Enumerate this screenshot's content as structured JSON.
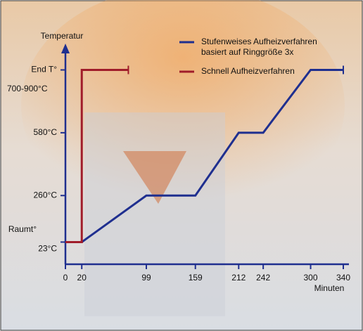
{
  "chart_data": {
    "type": "line",
    "y_label": "Temperatur",
    "x_label": "Minuten",
    "annotations": [
      "700-900°C",
      "Raumt°"
    ],
    "xlim": [
      0,
      340
    ],
    "xticks": [
      0,
      20,
      99,
      159,
      212,
      242,
      300,
      340
    ],
    "ylim": [
      -90,
      1020
    ],
    "yticks": [
      {
        "value": 23,
        "label": "23°C"
      },
      {
        "value": 260,
        "label": "260°C"
      },
      {
        "value": 580,
        "label": "580°C"
      },
      {
        "value": 900,
        "label": "End T°"
      }
    ],
    "legend": "top-right",
    "series": [
      {
        "name": "Stufenweises Aufheizverfahren basiert auf Ringgröße 3x",
        "color": "#1f2f8f",
        "x": [
          0,
          20,
          99,
          159,
          212,
          242,
          300,
          340
        ],
        "values": [
          23,
          23,
          260,
          260,
          580,
          580,
          900,
          900
        ]
      },
      {
        "name": "Schnell Aufheizverfahren",
        "color": "#a01c2a",
        "x": [
          0,
          20,
          20,
          77
        ],
        "values": [
          23,
          23,
          900,
          900
        ]
      }
    ]
  }
}
